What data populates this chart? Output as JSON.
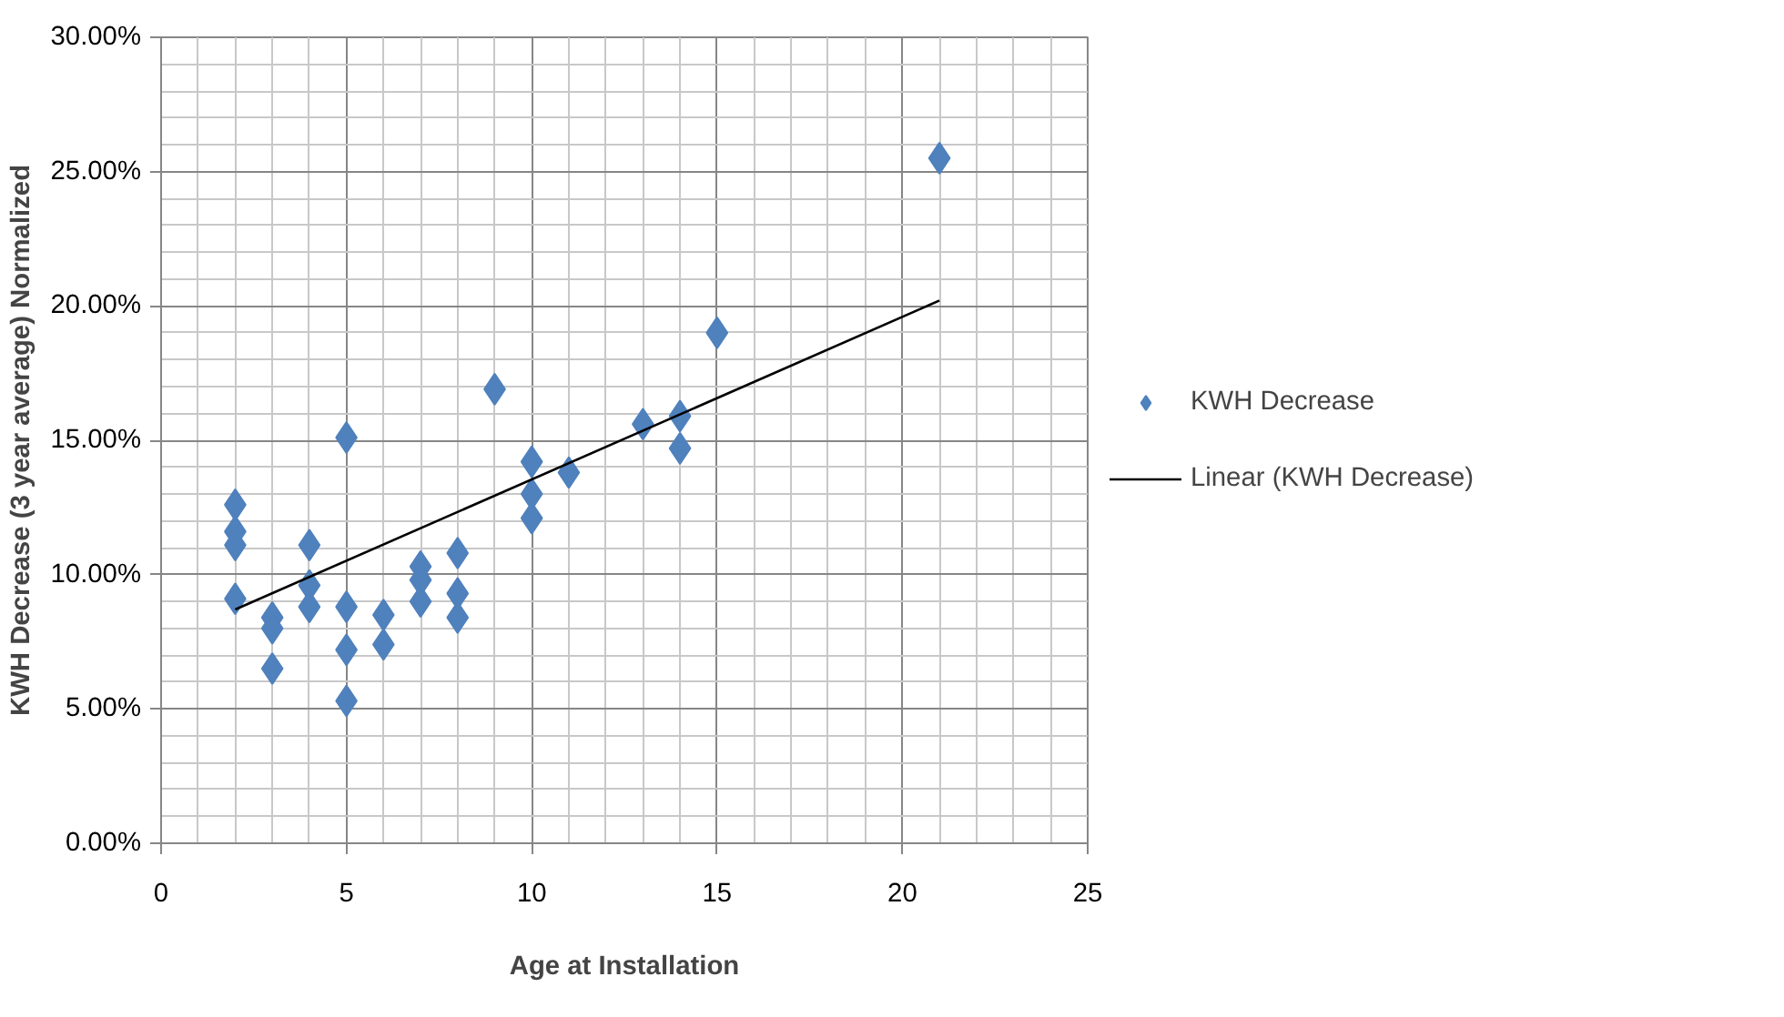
{
  "chart_data": {
    "type": "scatter",
    "xlabel": "Age at Installation",
    "ylabel": "KWH Decrease (3 year average) Normalized",
    "xlim": [
      0,
      25
    ],
    "xticks": [
      0,
      5,
      10,
      15,
      20,
      25
    ],
    "ylim": [
      0,
      30
    ],
    "yticks": [
      {
        "value": 0,
        "label": "0.00%"
      },
      {
        "value": 5,
        "label": "5.00%"
      },
      {
        "value": 10,
        "label": "10.00%"
      },
      {
        "value": 15,
        "label": "15.00%"
      },
      {
        "value": 20,
        "label": "20.00%"
      },
      {
        "value": 25,
        "label": "25.00%"
      },
      {
        "value": 30,
        "label": "30.00%"
      }
    ],
    "grid": true,
    "legend": "right",
    "series": [
      {
        "name": "KWH Decrease",
        "type": "scatter",
        "marker": "diamond",
        "color": "#4f81bd",
        "x": [
          2,
          2,
          2,
          2,
          3,
          3,
          3,
          4,
          4,
          4,
          5,
          5,
          5,
          5,
          6,
          6,
          7,
          7,
          7,
          8,
          8,
          8,
          9,
          10,
          10,
          10,
          11,
          13,
          14,
          14,
          15,
          21
        ],
        "values": [
          12.6,
          11.6,
          11.1,
          9.1,
          8.4,
          8.0,
          6.5,
          11.1,
          9.6,
          8.8,
          15.1,
          8.8,
          7.2,
          5.3,
          8.5,
          7.4,
          10.3,
          9.8,
          9.0,
          10.8,
          9.3,
          8.4,
          16.9,
          14.2,
          13.0,
          12.1,
          13.8,
          15.6,
          15.9,
          14.7,
          19.0,
          25.5
        ]
      },
      {
        "name": "Linear (KWH Decrease)",
        "type": "line",
        "marker": "none",
        "color": "#000000",
        "x": [
          2,
          21
        ],
        "values": [
          8.7,
          20.2
        ]
      }
    ]
  }
}
